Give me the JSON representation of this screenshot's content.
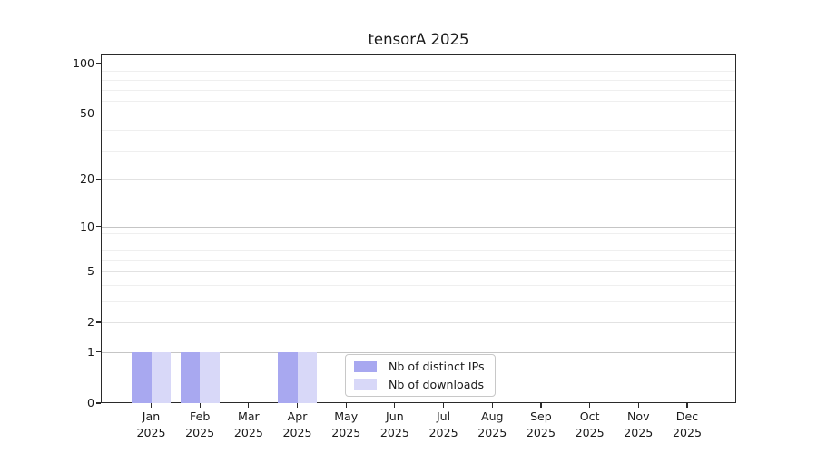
{
  "chart_data": {
    "type": "bar",
    "title": "tensorA 2025",
    "categories": [
      "Jan 2025",
      "Feb 2025",
      "Mar 2025",
      "Apr 2025",
      "May 2025",
      "Jun 2025",
      "Jul 2025",
      "Aug 2025",
      "Sep 2025",
      "Oct 2025",
      "Nov 2025",
      "Dec 2025"
    ],
    "series": [
      {
        "name": "Nb of distinct IPs",
        "color": "#a8a8f0",
        "values": [
          1,
          1,
          0,
          1,
          0,
          0,
          0,
          0,
          0,
          0,
          0,
          0
        ]
      },
      {
        "name": "Nb of downloads",
        "color": "#d8d8f8",
        "values": [
          1,
          1,
          0,
          1,
          0,
          0,
          0,
          0,
          0,
          0,
          0,
          0
        ]
      }
    ],
    "xlabel": "",
    "ylabel": "",
    "yscale": "log1p",
    "ylim": [
      0,
      113
    ],
    "y_tick_values": [
      0,
      1,
      2,
      5,
      10,
      20,
      50,
      100
    ],
    "y_tick_labels": [
      "0",
      "1",
      "2",
      "5",
      "10",
      "20",
      "50",
      "100"
    ],
    "y_gridline_major_values": [
      1,
      10,
      100
    ],
    "y_gridline_mid_values": [
      2,
      5,
      20,
      50
    ],
    "y_gridline_minor_values": [
      3,
      4,
      6,
      7,
      8,
      9,
      30,
      40,
      60,
      70,
      80,
      90
    ],
    "grid": "both",
    "legend_position": "lower center"
  },
  "colors": {
    "grid_major": "#c5c5c5",
    "grid_mid": "#e2e2e2",
    "grid_minor": "#efefef",
    "spine": "#2a2a2a",
    "text": "#1a1a1a",
    "background": "#ffffff"
  }
}
